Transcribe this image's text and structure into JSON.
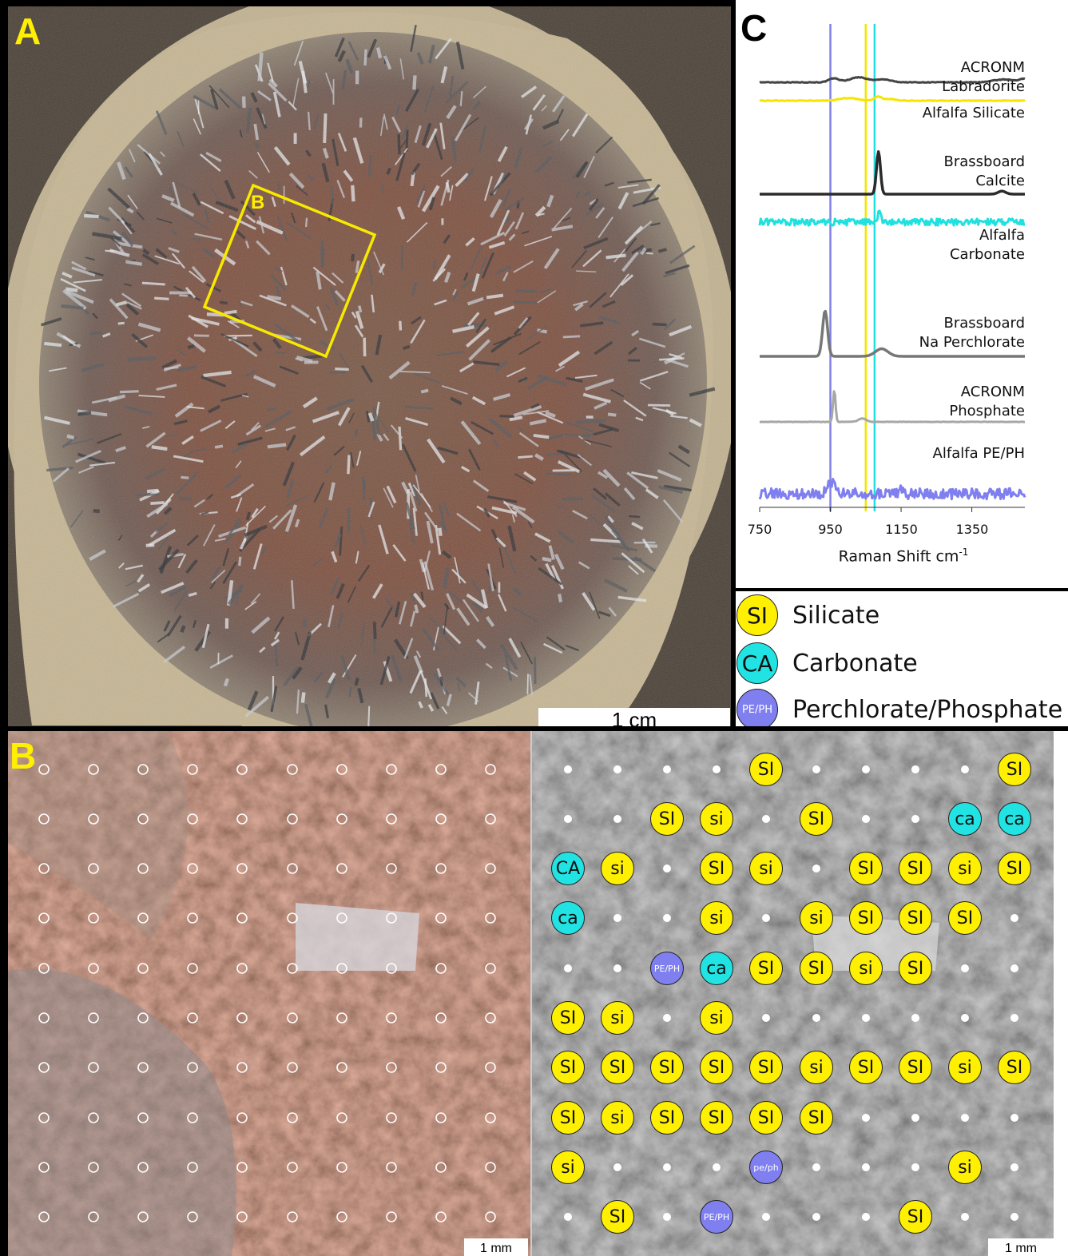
{
  "panels": {
    "a": {
      "letter": "A",
      "scalebar_label": "1 cm",
      "inset_label": "B"
    },
    "b": {
      "letter": "B",
      "scalebar_label_left": "1 mm",
      "scalebar_label_right": "1 mm"
    },
    "c": {
      "letter": "C"
    }
  },
  "colors": {
    "silicate": "#ffef00",
    "carbonate": "#21e3e3",
    "perchlorate_phosphate": "#7f7ff0",
    "panel_letter": "#ffef00"
  },
  "legend": [
    {
      "code": "SI",
      "label": "Silicate",
      "color": "#ffef00"
    },
    {
      "code": "CA",
      "label": "Carbonate",
      "color": "#21e3e3"
    },
    {
      "code": "PE/PH",
      "label": "Perchlorate/Phosphate",
      "color": "#7f7ff0"
    }
  ],
  "grid": {
    "rows": [
      [
        "",
        "",
        "",
        "",
        "SI",
        "",
        "",
        "",
        "",
        "SI"
      ],
      [
        "",
        "",
        "SI",
        "si",
        "",
        "SI",
        "",
        "",
        "ca",
        "ca"
      ],
      [
        "CA",
        "si",
        "",
        "SI",
        "si",
        "",
        "SI",
        "SI",
        "si",
        "SI"
      ],
      [
        "ca",
        "",
        "",
        "si",
        "",
        "si",
        "SI",
        "SI",
        "SI",
        ""
      ],
      [
        "",
        "",
        "PE/PH",
        "ca",
        "SI",
        "SI",
        "si",
        "SI",
        "",
        ""
      ],
      [
        "SI",
        "si",
        "",
        "si",
        "",
        "",
        "",
        "",
        "",
        ""
      ],
      [
        "SI",
        "SI",
        "SI",
        "SI",
        "SI",
        "si",
        "SI",
        "SI",
        "si",
        "SI"
      ],
      [
        "SI",
        "si",
        "SI",
        "SI",
        "SI",
        "SI",
        "",
        "",
        "",
        ""
      ],
      [
        "si",
        "",
        "",
        "",
        "pe/ph",
        "",
        "",
        "",
        "si",
        ""
      ],
      [
        "",
        "SI",
        "",
        "PE/PH",
        "",
        "",
        "",
        "SI",
        "",
        ""
      ]
    ]
  },
  "chart_data": {
    "type": "line",
    "xlabel": "Raman Shift cm",
    "xlabel_superscript": "-1",
    "xlim": [
      750,
      1500
    ],
    "xticks": [
      750,
      950,
      1150,
      1350
    ],
    "y_ticks_shown": false,
    "vertical_lines": [
      {
        "x": 950,
        "color": "#8080e8"
      },
      {
        "x": 1050,
        "color": "#f2e600"
      },
      {
        "x": 1075,
        "color": "#20e0e0"
      }
    ],
    "series": [
      {
        "name": "ACRONM Labradorite",
        "color": "#444444",
        "offset": 0,
        "peaks": [
          [
            960,
            0.35,
            20
          ],
          [
            1030,
            0.45,
            35
          ],
          [
            1100,
            0.25,
            30
          ],
          [
            1440,
            0.25,
            40
          ],
          [
            1500,
            0.3,
            20
          ]
        ],
        "noise": 0.06
      },
      {
        "name": "Alfalfa Silicate",
        "color": "#f5e600",
        "offset": 1,
        "peaks": [
          [
            1000,
            0.3,
            35
          ],
          [
            1085,
            0.45,
            15
          ],
          [
            1120,
            0.2,
            20
          ]
        ],
        "noise": 0.08
      },
      {
        "name": "Brassboard Calcite",
        "color": "#2b2b2b",
        "offset": 2,
        "peaks": [
          [
            1086,
            2.8,
            8
          ],
          [
            1435,
            0.2,
            15
          ]
        ],
        "noise": 0.0
      },
      {
        "name": "Alfalfa Carbonate",
        "color": "#20e0e0",
        "offset": 3,
        "peaks": [
          [
            1088,
            1.0,
            5
          ]
        ],
        "noise": 0.5
      },
      {
        "name": "Brassboard Na Perchlorate",
        "color": "#777777",
        "offset": 4,
        "peaks": [
          [
            935,
            3.0,
            10
          ],
          [
            1095,
            0.5,
            25
          ]
        ],
        "noise": 0.0
      },
      {
        "name": "ACRONM Phosphate",
        "color": "#a7a7a7",
        "offset": 5,
        "peaks": [
          [
            961,
            1.9,
            5
          ],
          [
            1040,
            0.2,
            15
          ]
        ],
        "noise": 0.02
      },
      {
        "name": "Alfalfa PE/PH",
        "color": "#7f7ff0",
        "offset": 6,
        "peaks": [
          [
            945,
            0.8,
            12
          ],
          [
            960,
            0.7,
            8
          ],
          [
            1150,
            0.4,
            10
          ]
        ],
        "noise": 0.9
      }
    ],
    "labels": [
      {
        "lines": [
          "ACRONM",
          "Labradorite"
        ]
      },
      {
        "lines": [
          "Alfalfa Silicate"
        ]
      },
      {
        "lines": [
          "Brassboard",
          "Calcite"
        ]
      },
      {
        "lines": [
          "Alfalfa",
          "Carbonate"
        ]
      },
      {
        "lines": [
          "Brassboard",
          "Na Perchlorate"
        ]
      },
      {
        "lines": [
          "ACRONM",
          "Phosphate"
        ]
      },
      {
        "lines": [
          "Alfalfa PE/PH"
        ]
      }
    ]
  }
}
